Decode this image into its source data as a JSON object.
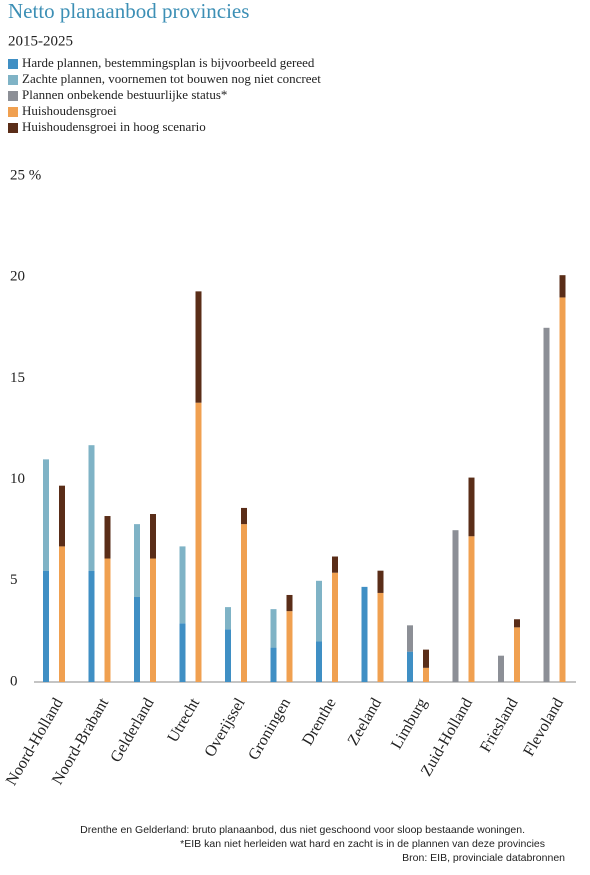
{
  "chart_data": {
    "type": "stacked-pair-bar",
    "title": "Netto planaanbod provincies",
    "subtitle": "2015-2025",
    "categories": [
      "Noord-Holland",
      "Noord-Brabant",
      "Gelderland",
      "Utrecht",
      "Overijssel",
      "Groningen",
      "Drenthe",
      "Zeeland",
      "Limburg",
      "Zuid-Holland",
      "Friesland",
      "Flevoland"
    ],
    "series": [
      {
        "name": "Harde plannen, bestemmingsplan is bijvoorbeeld gereed",
        "color": "#3f8fc4",
        "stack": 0,
        "values": [
          5.5,
          5.5,
          4.2,
          2.9,
          2.6,
          1.7,
          2.0,
          4.7,
          1.5,
          null,
          null,
          null
        ]
      },
      {
        "name": "Zachte plannen, voornemen tot bouwen nog niet concreet",
        "color": "#7fb3c6",
        "stack": 0,
        "values": [
          5.5,
          6.2,
          3.6,
          3.8,
          1.1,
          1.9,
          3.0,
          null,
          null,
          null,
          null,
          null
        ]
      },
      {
        "name": "Plannen onbekende bestuurlijke status*",
        "color": "#8c8f96",
        "stack": 0,
        "values": [
          null,
          null,
          null,
          null,
          null,
          null,
          null,
          null,
          1.3,
          7.5,
          1.3,
          17.5
        ]
      },
      {
        "name": "Huishoudensgroei",
        "color": "#f0a050",
        "stack": 1,
        "values": [
          6.7,
          6.1,
          6.1,
          13.8,
          7.8,
          3.5,
          5.4,
          4.4,
          0.7,
          7.2,
          2.7,
          19.0
        ]
      },
      {
        "name": "Huishoudensgroei in hoog scenario",
        "color": "#5a2d18",
        "stack": 1,
        "values": [
          3.0,
          2.1,
          2.2,
          5.5,
          0.8,
          0.8,
          0.8,
          1.1,
          0.9,
          2.9,
          0.4,
          1.1
        ]
      }
    ],
    "ylim": [
      0,
      25
    ],
    "yticks": [
      0,
      5,
      10,
      15,
      20,
      {
        "value": 25,
        "label": "25 %"
      }
    ],
    "notes": [
      "Drenthe en Gelderland: bruto planaanbod, dus niet geschoond voor sloop bestaande woningen.",
      "*EIB kan niet herleiden wat hard en zacht is in de plannen van deze provincies",
      "Bron: EIB, provinciale databronnen"
    ]
  }
}
